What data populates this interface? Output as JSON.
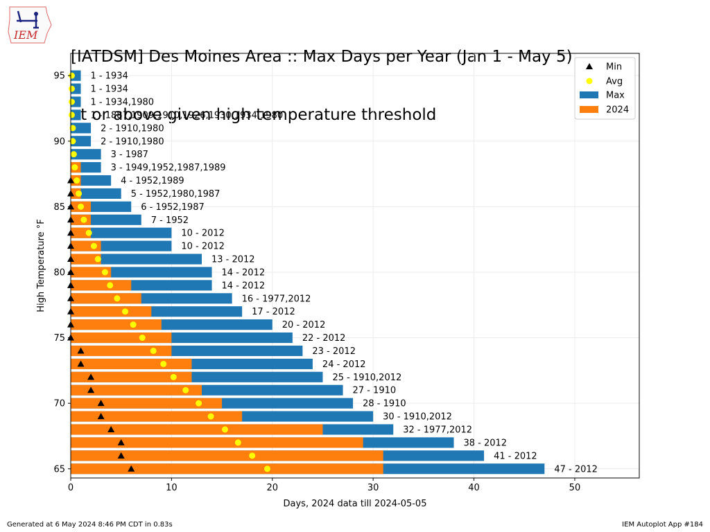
{
  "header": {
    "title_line1": "[IATDSM] Des Moines Area :: Max Days per Year (Jan 1 - May 5)",
    "title_line2": "at or above given high temperature threshold",
    "logo_text": "IEM"
  },
  "footer": {
    "left": "Generated at 6 May 2024 8:46 PM CDT in 0.83s",
    "right": "IEM Autoplot App #184"
  },
  "chart_data": {
    "type": "bar",
    "orientation": "horizontal",
    "xlabel": "Days, 2024 data till 2024-05-05",
    "ylabel": "High Temperature °F",
    "xlim": [
      0,
      56.4
    ],
    "ylim": [
      64.3,
      96.7
    ],
    "x_ticks": [
      0,
      10,
      20,
      30,
      40,
      50
    ],
    "y_ticks": [
      65,
      70,
      75,
      80,
      85,
      90,
      95
    ],
    "grid": true,
    "legend": {
      "placement": "top-right",
      "entries": [
        "Min",
        "Avg",
        "Max",
        "2024"
      ]
    },
    "colors": {
      "max": "#1f77b4",
      "current": "#ff7f0e",
      "avg": "#ffff00",
      "min": "#000000"
    },
    "thresholds": [
      65,
      66,
      67,
      68,
      69,
      70,
      71,
      72,
      73,
      74,
      75,
      76,
      77,
      78,
      79,
      80,
      81,
      82,
      83,
      84,
      85,
      86,
      87,
      88,
      89,
      90,
      91,
      92,
      93,
      94,
      95
    ],
    "series": [
      {
        "name": "Max",
        "values": [
          47,
          41,
          38,
          32,
          30,
          28,
          27,
          25,
          24,
          23,
          22,
          20,
          17,
          16,
          14,
          14,
          13,
          10,
          10,
          7,
          6,
          5,
          4,
          3,
          3,
          2,
          2,
          1,
          1,
          1,
          1
        ]
      },
      {
        "name": "2024",
        "values": [
          31,
          31,
          29,
          25,
          17,
          15,
          13,
          12,
          12,
          10,
          10,
          9,
          8,
          7,
          6,
          4,
          3,
          3,
          2,
          2,
          2,
          1,
          1,
          1,
          0,
          0,
          0,
          0,
          0,
          0,
          0
        ]
      },
      {
        "name": "Avg",
        "values": [
          19.5,
          18,
          16.6,
          15.3,
          13.9,
          12.7,
          11.4,
          10.2,
          9.2,
          8.2,
          7.1,
          6.2,
          5.4,
          4.6,
          3.9,
          3.4,
          2.7,
          2.3,
          1.8,
          1.3,
          1.0,
          0.8,
          0.6,
          0.4,
          0.3,
          0.2,
          0.2,
          0.1,
          0.1,
          0.1,
          0.1
        ]
      },
      {
        "name": "Min",
        "values": [
          6,
          5,
          5,
          4,
          3,
          3,
          2,
          2,
          1,
          1,
          0,
          0,
          0,
          0,
          0,
          0,
          0,
          0,
          0,
          0,
          0,
          0,
          0,
          null,
          null,
          null,
          null,
          null,
          null,
          null,
          null
        ]
      }
    ],
    "bar_labels": [
      "47 - 2012",
      "41 - 2012",
      "38 - 2012",
      "32 - 1977,2012",
      "30 - 1910,2012",
      "28 - 1910",
      "27 - 1910",
      "25 - 1910,2012",
      "24 - 2012",
      "23 - 2012",
      "22 - 2012",
      "20 - 2012",
      "17 - 2012",
      "16 - 1977,2012",
      "14 - 2012",
      "14 - 2012",
      "13 - 2012",
      "10 - 2012",
      "10 - 2012",
      "7 - 1952",
      "6 - 1952,1987",
      "5 - 1952,1980,1987",
      "4 - 1952,1989",
      "3 - 1949,1952,1987,1989",
      "3 - 1987",
      "2 - 1910,1980",
      "2 - 1910,1980",
      "1 - 1887,1909,1910,1926,1930,1934,1980",
      "1 - 1934,1980",
      "1 - 1934",
      "1 - 1934"
    ]
  }
}
